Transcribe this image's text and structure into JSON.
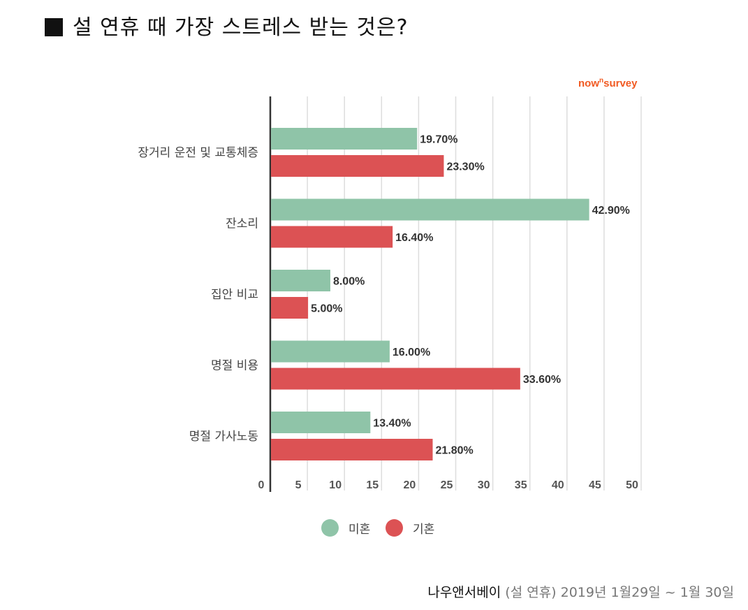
{
  "title": "설 연휴 때 가장 스트레스 받는 것은?",
  "brand": {
    "main": "now",
    "sup": "n",
    "tail": "survey"
  },
  "colors": {
    "series1": "#8fc4a8",
    "series2": "#dc5254",
    "axis": "#333333",
    "grid": "#dddddd",
    "brand": "#f15a22"
  },
  "chart_data": {
    "type": "bar",
    "orientation": "horizontal",
    "categories": [
      "장거리 운전 및 교통체증",
      "잔소리",
      "집안 비교",
      "명절 비용",
      "명절 가사노동"
    ],
    "series": [
      {
        "name": "미혼",
        "values": [
          19.7,
          42.9,
          8.0,
          16.0,
          13.4
        ],
        "labels": [
          "19.70%",
          "42.90%",
          "8.00%",
          "16.00%",
          "13.40%"
        ]
      },
      {
        "name": "기혼",
        "values": [
          23.3,
          16.4,
          5.0,
          33.6,
          21.8
        ],
        "labels": [
          "23.30%",
          "16.40%",
          "5.00%",
          "33.60%",
          "21.80%"
        ]
      }
    ],
    "xlim": [
      0,
      50
    ],
    "xticks": [
      "0",
      "5",
      "10",
      "15",
      "20",
      "25",
      "30",
      "35",
      "40",
      "45",
      "50"
    ],
    "grid": true,
    "legend_position": "bottom"
  },
  "footer": {
    "source": "나우앤서베이",
    "note": "(설 연휴) 2019년 1월29일 ~ 1월 30일"
  }
}
